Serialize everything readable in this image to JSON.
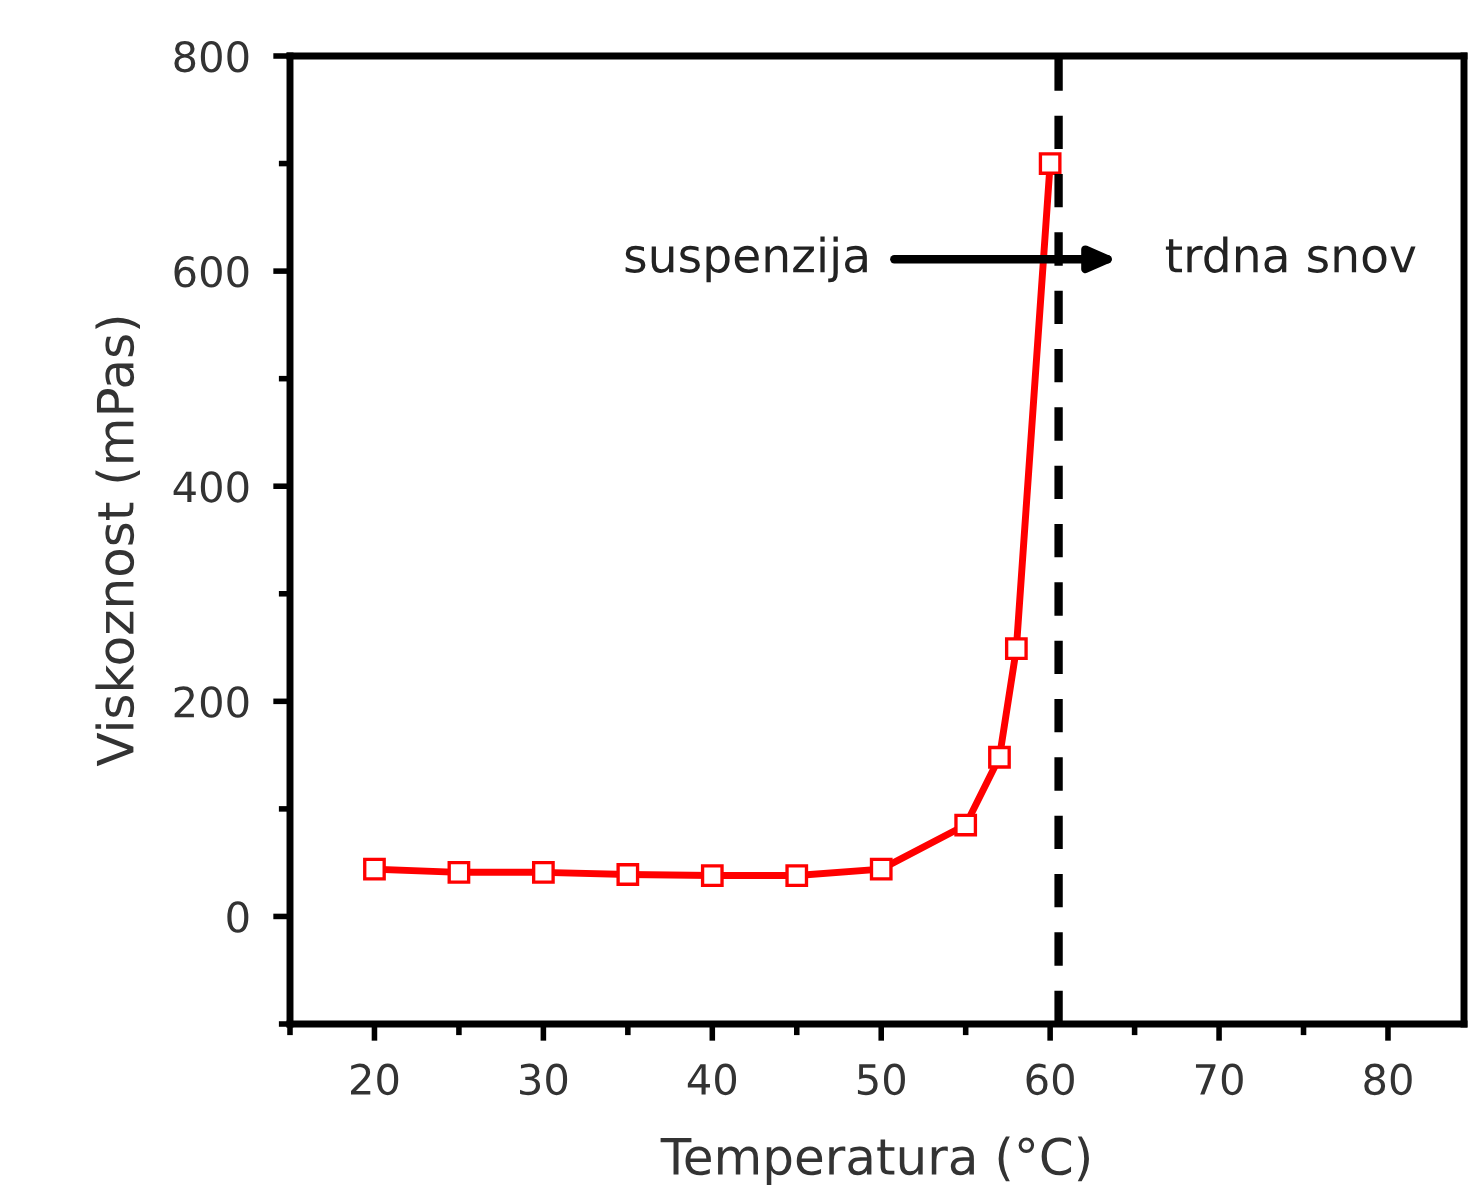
{
  "chart_data": {
    "type": "line",
    "xlabel": "Temperatura (°C)",
    "ylabel": "Viskoznost (mPas)",
    "x": [
      20,
      25,
      30,
      35,
      40,
      45,
      50,
      55,
      57,
      58,
      60
    ],
    "series": [
      {
        "color": "#ff0000",
        "values": [
          44,
          41,
          41,
          39,
          38,
          38,
          44,
          85,
          148,
          249,
          700
        ]
      }
    ],
    "marker": "square",
    "line_style": "solid",
    "grid": false,
    "legend": false,
    "xlim": [
      15,
      84.5
    ],
    "ylim": [
      -100,
      800
    ],
    "xticks": [
      20,
      30,
      40,
      50,
      60,
      70,
      80
    ],
    "yticks": [
      0,
      200,
      400,
      600,
      800
    ],
    "ref_lines": [
      {
        "axis": "x",
        "value": 60.5,
        "color": "#000000",
        "line_style": "dashed"
      }
    ],
    "annotations": [
      "suspenzija",
      "trdna snov"
    ]
  }
}
